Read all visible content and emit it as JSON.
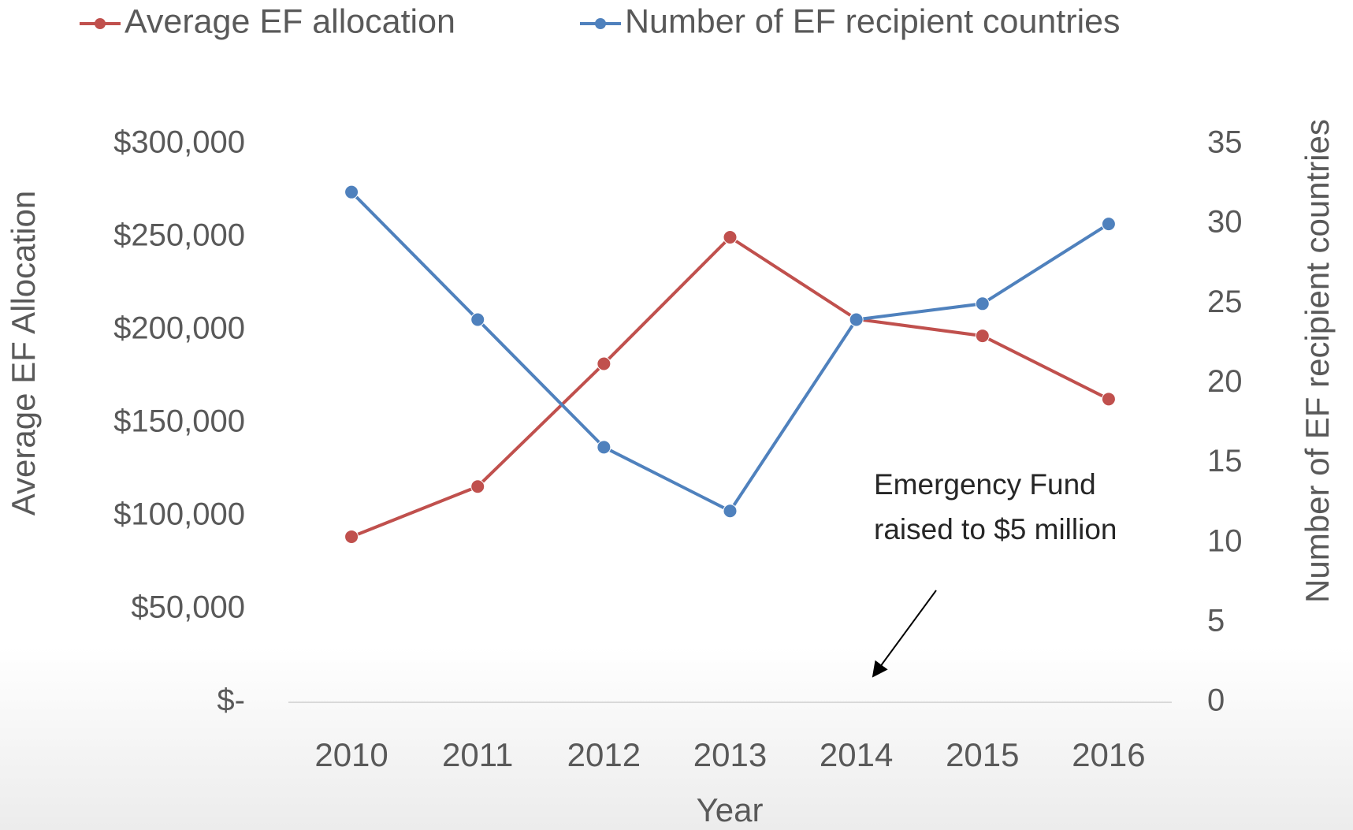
{
  "chart_data": {
    "type": "line",
    "categories": [
      "2010",
      "2011",
      "2012",
      "2013",
      "2014",
      "2015",
      "2016"
    ],
    "series": [
      {
        "name": "Average EF allocation",
        "color": "#c0504d",
        "values": [
          89000,
          116000,
          182000,
          250000,
          206000,
          197000,
          163000
        ]
      },
      {
        "name": "Number of EF recipient countries",
        "color": "#4f81bd",
        "axis": "y2",
        "values": [
          32,
          24,
          16,
          12,
          24,
          25,
          30
        ]
      }
    ],
    "xlabel": "Year",
    "ylabel": "Average EF Allocation",
    "y2label": "Number of EF recipient countries",
    "ylim": [
      0,
      300000
    ],
    "yticks": [
      {
        "value": 0,
        "label": "$-"
      },
      {
        "value": 50000,
        "label": "$50,000"
      },
      {
        "value": 100000,
        "label": "$100,000"
      },
      {
        "value": 150000,
        "label": "$150,000"
      },
      {
        "value": 200000,
        "label": "$200,000"
      },
      {
        "value": 250000,
        "label": "$250,000"
      },
      {
        "value": 300000,
        "label": "$300,000"
      }
    ],
    "y2lim": [
      0,
      35
    ],
    "y2ticks": [
      0,
      5,
      10,
      15,
      20,
      25,
      30,
      35
    ],
    "annotation": "Emergency Fund raised to $5 million",
    "legend": "top"
  }
}
